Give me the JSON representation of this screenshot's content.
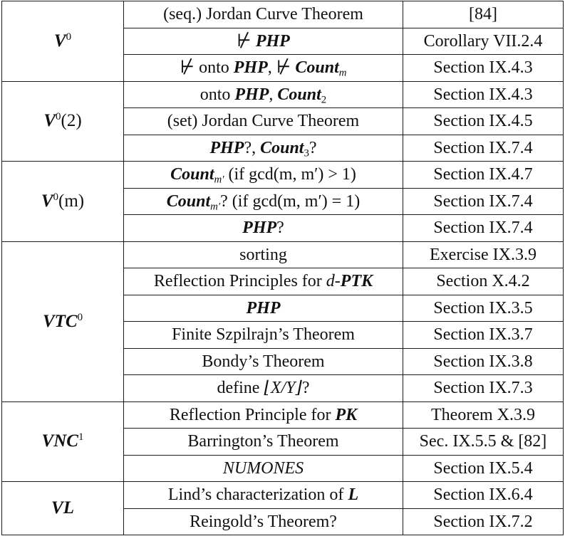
{
  "groups": [
    {
      "theory": {
        "base": "V",
        "sup": "0",
        "suffix": ""
      },
      "rows": [
        {
          "statement": {
            "pre": "(seq.) Jordan Curve Theorem"
          },
          "reference": "[84]"
        },
        {
          "statement": {
            "nprv": "⊬",
            "bold": "PHP"
          },
          "reference": "Corollary VII.2.4"
        },
        {
          "statement": {
            "nprv1": "⊬",
            "txt1": "onto",
            "bold1": "PHP",
            "comma": ",",
            "nprv2": "⊬",
            "bold2": "Count",
            "sub": "m"
          },
          "reference": "Section IX.4.3"
        }
      ]
    },
    {
      "theory": {
        "base": "V",
        "sup": "0",
        "suffix": "(2)"
      },
      "rows": [
        {
          "statement": {
            "txt": "onto",
            "bold1": "PHP",
            "comma": ",",
            "bold2": "Count",
            "sub": "2"
          },
          "reference": "Section IX.4.3"
        },
        {
          "statement": {
            "pre": "(set) Jordan Curve Theorem"
          },
          "reference": "Section IX.4.5"
        },
        {
          "statement": {
            "bold1": "PHP",
            "q1": "?,",
            "bold2": "Count",
            "sub": "3",
            "q2": "?"
          },
          "reference": "Section IX.7.4"
        }
      ]
    },
    {
      "theory": {
        "base": "V",
        "sup": "0",
        "suffix": "(m)"
      },
      "rows": [
        {
          "statement": {
            "bold": "Count",
            "sub": "m′",
            "rest": "(if gcd(m, m′) > 1)"
          },
          "reference": "Section IX.4.7"
        },
        {
          "statement": {
            "bold": "Count",
            "sub": "m′",
            "rest": "? (if gcd(m, m′) = 1)"
          },
          "reference": "Section IX.7.4"
        },
        {
          "statement": {
            "bold": "PHP",
            "q": "?"
          },
          "reference": "Section IX.7.4"
        }
      ]
    },
    {
      "theory": {
        "base": "VTC",
        "sup": "0",
        "suffix": ""
      },
      "rows": [
        {
          "statement": {
            "pre": "sorting"
          },
          "reference": "Exercise IX.3.9"
        },
        {
          "statement": {
            "txt": "Reflection Principles for",
            "it": "d",
            "dash": "-",
            "bold": "PTK"
          },
          "reference": "Section X.4.2"
        },
        {
          "statement": {
            "bold": "PHP"
          },
          "reference": "Section IX.3.5"
        },
        {
          "statement": {
            "pre": "Finite Szpilrajn’s Theorem"
          },
          "reference": "Section IX.3.7"
        },
        {
          "statement": {
            "pre": "Bondy’s Theorem"
          },
          "reference": "Section IX.3.8"
        },
        {
          "statement": {
            "txt": "define",
            "floor": "⌊X/Y⌋",
            "q": "?"
          },
          "reference": "Section IX.7.3"
        }
      ]
    },
    {
      "theory": {
        "base": "VNC",
        "sup": "1",
        "suffix": ""
      },
      "rows": [
        {
          "statement": {
            "txt": "Reflection Principle for",
            "bold": "PK"
          },
          "reference": "Theorem X.3.9"
        },
        {
          "statement": {
            "pre": "Barrington’s Theorem"
          },
          "reference": "Sec. IX.5.5 & [82]"
        },
        {
          "statement": {
            "it": "NUMONES"
          },
          "reference": "Section IX.5.4"
        }
      ]
    },
    {
      "theory": {
        "base": "VL",
        "sup": "",
        "suffix": ""
      },
      "rows": [
        {
          "statement": {
            "txt": "Lind’s characterization of",
            "bold": "L"
          },
          "reference": "Section IX.6.4"
        },
        {
          "statement": {
            "pre": "Reingold’s Theorem?"
          },
          "reference": "Section IX.7.2"
        }
      ]
    }
  ]
}
